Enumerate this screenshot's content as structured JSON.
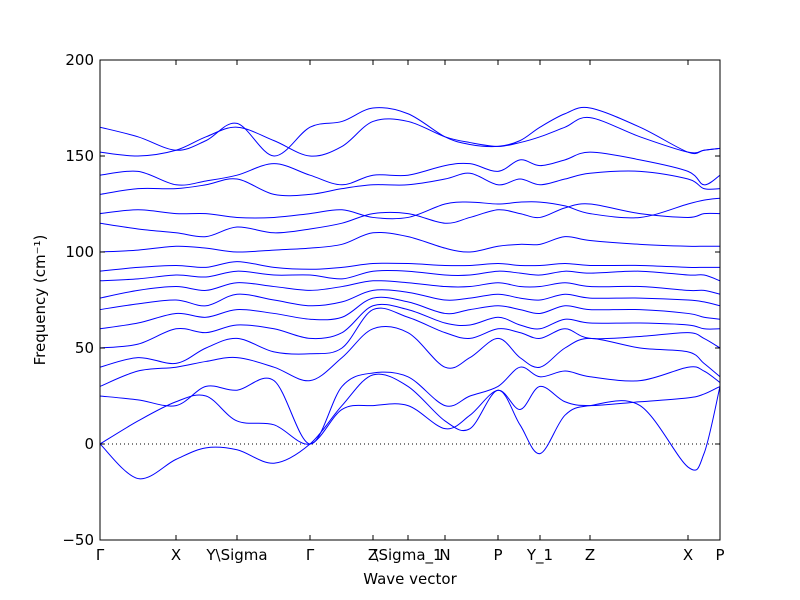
{
  "chart_data": {
    "type": "line",
    "xlabel": "Wave vector",
    "ylabel": "Frequency (cm⁻¹)",
    "xlim": [
      0,
      6.2
    ],
    "ylim": [
      -50,
      200
    ],
    "yticks": [
      {
        "value": -50,
        "label": "−50"
      },
      0,
      50,
      100,
      150,
      200
    ],
    "xticks": [
      {
        "value": 0,
        "label": "Γ"
      },
      {
        "value": 0.76,
        "label": "X"
      },
      {
        "value": 1.37,
        "label": "Y\\Sigma"
      },
      {
        "value": 2.1,
        "label": "Γ"
      },
      {
        "value": 2.73,
        "label": "Z"
      },
      {
        "value": 3.08,
        "label": "\\Sigma_1"
      },
      {
        "value": 3.45,
        "label": "N"
      },
      {
        "value": 3.98,
        "label": "P"
      },
      {
        "value": 4.4,
        "label": "Y_1"
      },
      {
        "value": 4.9,
        "label": "Z"
      },
      {
        "value": 5.88,
        "label": "X"
      },
      {
        "value": 6.2,
        "label": "P"
      }
    ],
    "hline": 0,
    "color": "#0000ff",
    "x": [
      0,
      0.38,
      0.76,
      1.06,
      1.37,
      1.74,
      2.1,
      2.42,
      2.73,
      3.08,
      3.45,
      3.7,
      3.98,
      4.2,
      4.4,
      4.65,
      4.9,
      5.4,
      5.88,
      6.04,
      6.2
    ],
    "series": [
      {
        "values": [
          0,
          -18,
          -8,
          -2,
          -3,
          -10,
          0,
          20,
          36,
          30,
          12,
          8,
          28,
          10,
          -5,
          15,
          20,
          20,
          -12,
          -5,
          30
        ]
      },
      {
        "values": [
          0,
          12,
          22,
          25,
          12,
          10,
          0,
          18,
          20,
          20,
          8,
          15,
          28,
          18,
          30,
          22,
          20,
          22,
          24,
          26,
          30
        ]
      },
      {
        "values": [
          25,
          23,
          20,
          30,
          28,
          33,
          0,
          30,
          37,
          35,
          20,
          25,
          30,
          40,
          35,
          38,
          35,
          33,
          40,
          38,
          32
        ]
      },
      {
        "values": [
          30,
          38,
          40,
          43,
          45,
          40,
          33,
          45,
          60,
          58,
          40,
          45,
          55,
          45,
          40,
          50,
          55,
          50,
          48,
          42,
          35
        ]
      },
      {
        "values": [
          40,
          45,
          42,
          50,
          55,
          48,
          47,
          50,
          70,
          66,
          58,
          55,
          60,
          58,
          55,
          60,
          55,
          56,
          58,
          55,
          50
        ]
      },
      {
        "values": [
          50,
          52,
          60,
          58,
          62,
          60,
          55,
          58,
          72,
          70,
          63,
          62,
          66,
          62,
          60,
          65,
          63,
          63,
          62,
          60,
          60
        ]
      },
      {
        "values": [
          60,
          63,
          68,
          66,
          70,
          68,
          65,
          66,
          76,
          74,
          68,
          70,
          72,
          70,
          68,
          72,
          70,
          70,
          68,
          66,
          65
        ]
      },
      {
        "values": [
          70,
          73,
          75,
          72,
          78,
          75,
          72,
          74,
          80,
          79,
          75,
          76,
          78,
          76,
          75,
          78,
          76,
          76,
          75,
          74,
          72
        ]
      },
      {
        "values": [
          76,
          80,
          82,
          80,
          84,
          82,
          80,
          82,
          85,
          84,
          82,
          82,
          84,
          82,
          82,
          84,
          82,
          82,
          80,
          80,
          78
        ]
      },
      {
        "values": [
          85,
          86,
          88,
          87,
          90,
          88,
          88,
          86,
          90,
          90,
          88,
          88,
          90,
          89,
          88,
          90,
          89,
          90,
          88,
          88,
          85
        ]
      },
      {
        "values": [
          90,
          92,
          93,
          92,
          95,
          92,
          91,
          92,
          94,
          94,
          93,
          93,
          94,
          93,
          93,
          94,
          93,
          93,
          92,
          92,
          92
        ]
      },
      {
        "values": [
          100,
          101,
          103,
          102,
          100,
          101,
          102,
          104,
          110,
          108,
          102,
          100,
          103,
          104,
          104,
          108,
          106,
          104,
          103,
          103,
          103
        ]
      },
      {
        "values": [
          115,
          112,
          110,
          108,
          113,
          110,
          112,
          115,
          120,
          120,
          115,
          118,
          122,
          120,
          118,
          123,
          125,
          120,
          118,
          120,
          120
        ]
      },
      {
        "values": [
          120,
          122,
          120,
          120,
          118,
          118,
          120,
          122,
          118,
          118,
          125,
          126,
          125,
          126,
          126,
          124,
          120,
          118,
          125,
          127,
          128
        ]
      },
      {
        "values": [
          130,
          133,
          133,
          135,
          138,
          130,
          130,
          133,
          135,
          135,
          138,
          141,
          135,
          138,
          135,
          138,
          141,
          142,
          138,
          133,
          133
        ]
      },
      {
        "values": [
          140,
          142,
          135,
          137,
          140,
          146,
          140,
          135,
          140,
          140,
          145,
          146,
          142,
          148,
          145,
          148,
          152,
          148,
          142,
          135,
          140
        ]
      },
      {
        "values": [
          152,
          150,
          153,
          160,
          165,
          158,
          150,
          155,
          168,
          168,
          160,
          157,
          155,
          157,
          160,
          165,
          170,
          160,
          152,
          153,
          154
        ]
      },
      {
        "values": [
          165,
          160,
          153,
          158,
          167,
          150,
          165,
          168,
          175,
          172,
          160,
          156,
          155,
          158,
          165,
          172,
          175,
          165,
          152,
          153,
          154
        ]
      }
    ]
  }
}
